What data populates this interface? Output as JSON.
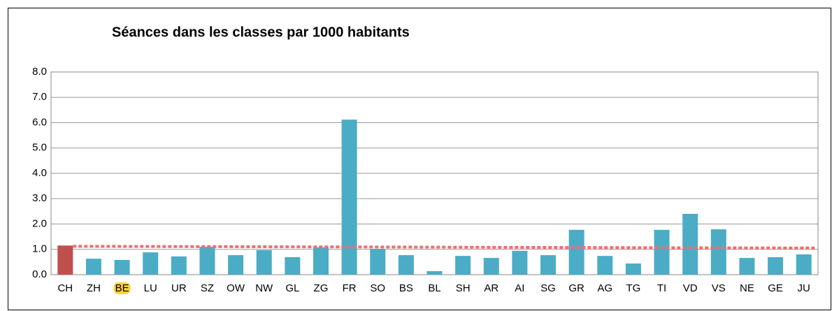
{
  "chart_data": {
    "type": "bar",
    "title": "Séances dans les classes par 1000 habitants",
    "categories": [
      "CH",
      "ZH",
      "BE",
      "LU",
      "UR",
      "SZ",
      "OW",
      "NW",
      "GL",
      "ZG",
      "FR",
      "SO",
      "BS",
      "BL",
      "SH",
      "AR",
      "AI",
      "SG",
      "GR",
      "AG",
      "TG",
      "TI",
      "VD",
      "VS",
      "NE",
      "GE",
      "JU"
    ],
    "values": [
      1.15,
      0.63,
      0.58,
      0.88,
      0.72,
      1.1,
      0.77,
      0.97,
      0.69,
      1.08,
      6.12,
      1.02,
      0.77,
      0.14,
      0.74,
      0.66,
      0.94,
      0.77,
      1.77,
      0.74,
      0.44,
      1.77,
      2.4,
      1.79,
      0.66,
      0.69,
      0.8
    ],
    "colors": [
      "#c0504d",
      "#4bacc6",
      "#4bacc6",
      "#4bacc6",
      "#4bacc6",
      "#4bacc6",
      "#4bacc6",
      "#4bacc6",
      "#4bacc6",
      "#4bacc6",
      "#4bacc6",
      "#4bacc6",
      "#4bacc6",
      "#4bacc6",
      "#4bacc6",
      "#4bacc6",
      "#4bacc6",
      "#4bacc6",
      "#4bacc6",
      "#4bacc6",
      "#4bacc6",
      "#4bacc6",
      "#4bacc6",
      "#4bacc6",
      "#4bacc6",
      "#4bacc6",
      "#4bacc6"
    ],
    "ylim": [
      0,
      8
    ],
    "yticks": [
      {
        "value": 0,
        "label": "0.0"
      },
      {
        "value": 1,
        "label": "1.0"
      },
      {
        "value": 2,
        "label": "2.0"
      },
      {
        "value": 3,
        "label": "3.0"
      },
      {
        "value": 4,
        "label": "4.0"
      },
      {
        "value": 5,
        "label": "5.0"
      },
      {
        "value": 6,
        "label": "6.0"
      },
      {
        "value": 7,
        "label": "7.0"
      },
      {
        "value": 8,
        "label": "8.0"
      }
    ],
    "grid": true,
    "reference_line": {
      "values": [
        1.12,
        1.05
      ],
      "color": "#f26d6d"
    },
    "label_highlight": {
      "category": "BE",
      "color": "#ffd23f"
    }
  }
}
